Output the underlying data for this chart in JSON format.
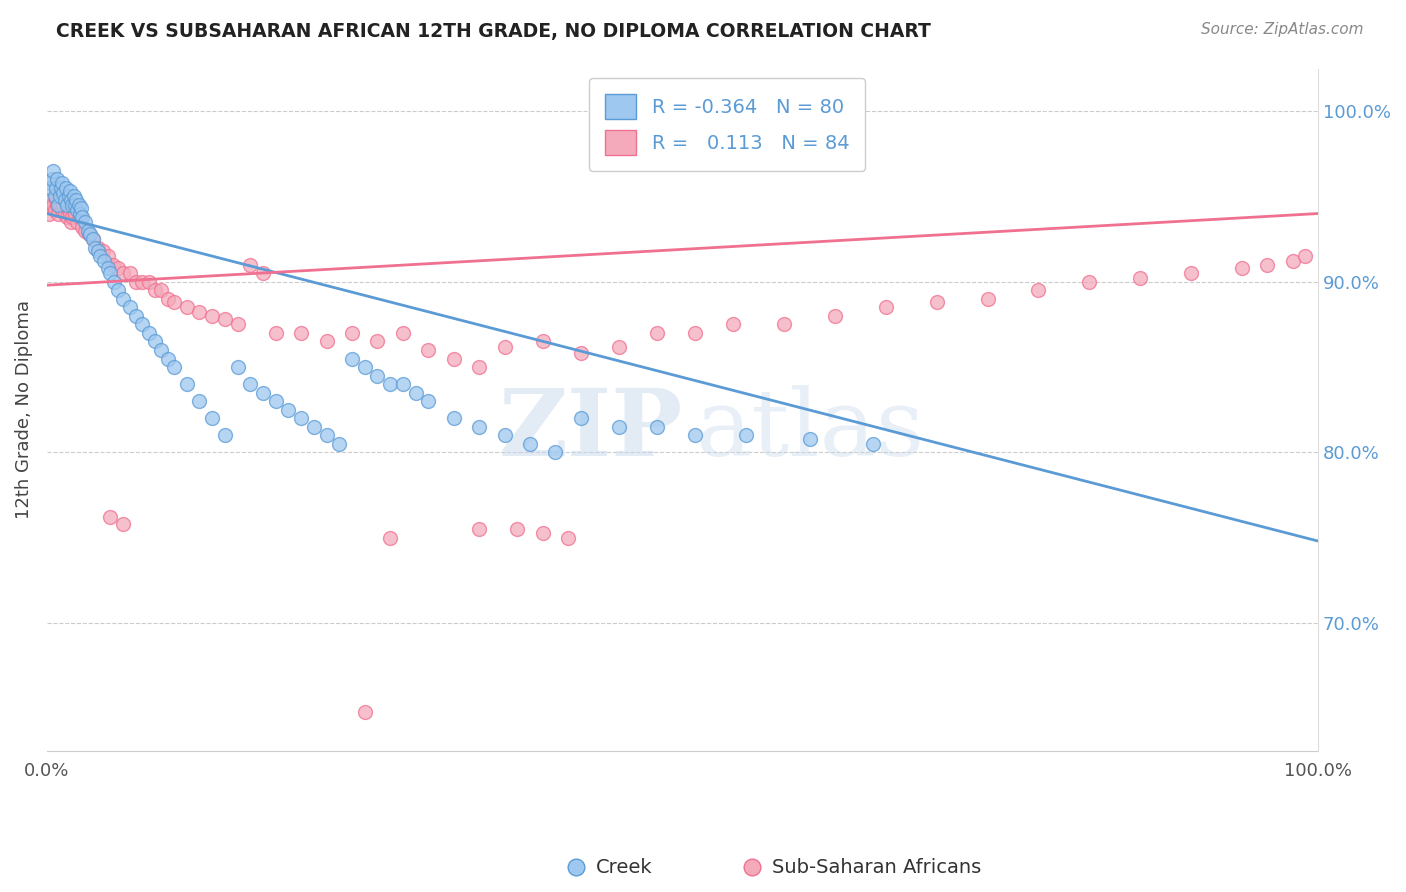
{
  "title": "CREEK VS SUBSAHARAN AFRICAN 12TH GRADE, NO DIPLOMA CORRELATION CHART",
  "source_text": "Source: ZipAtlas.com",
  "ylabel": "12th Grade, No Diploma",
  "legend_label_1": "Creek",
  "legend_label_2": "Sub-Saharan Africans",
  "R1": -0.364,
  "N1": 80,
  "R2": 0.113,
  "N2": 84,
  "color_creek": "#9EC8F0",
  "color_subsaharan": "#F4AABB",
  "color_creek_line": "#5B9BD5",
  "color_subsaharan_line": "#F07090",
  "watermark_zip": "ZIP",
  "watermark_atlas": "atlas",
  "xlim": [
    0.0,
    1.0
  ],
  "ylim": [
    0.625,
    1.025
  ],
  "right_yticks": [
    0.7,
    0.8,
    0.9,
    1.0
  ],
  "right_yticklabels": [
    "70.0%",
    "80.0%",
    "90.0%",
    "100.0%"
  ],
  "xtick_positions": [
    0.0,
    1.0
  ],
  "xticklabels": [
    "0.0%",
    "100.0%"
  ],
  "creek_x": [
    0.002,
    0.003,
    0.004,
    0.005,
    0.006,
    0.007,
    0.008,
    0.009,
    0.01,
    0.011,
    0.012,
    0.013,
    0.014,
    0.015,
    0.016,
    0.017,
    0.018,
    0.019,
    0.02,
    0.021,
    0.022,
    0.023,
    0.024,
    0.025,
    0.026,
    0.027,
    0.028,
    0.03,
    0.032,
    0.034,
    0.036,
    0.038,
    0.04,
    0.042,
    0.045,
    0.048,
    0.05,
    0.053,
    0.056,
    0.06,
    0.065,
    0.07,
    0.075,
    0.08,
    0.085,
    0.09,
    0.095,
    0.1,
    0.11,
    0.12,
    0.13,
    0.14,
    0.15,
    0.16,
    0.17,
    0.18,
    0.19,
    0.2,
    0.21,
    0.22,
    0.23,
    0.24,
    0.25,
    0.26,
    0.27,
    0.28,
    0.29,
    0.3,
    0.32,
    0.34,
    0.36,
    0.38,
    0.4,
    0.42,
    0.45,
    0.48,
    0.51,
    0.55,
    0.6,
    0.65
  ],
  "creek_y": [
    0.958,
    0.955,
    0.96,
    0.965,
    0.95,
    0.955,
    0.96,
    0.945,
    0.95,
    0.955,
    0.958,
    0.952,
    0.948,
    0.955,
    0.945,
    0.95,
    0.953,
    0.948,
    0.945,
    0.95,
    0.945,
    0.948,
    0.942,
    0.945,
    0.94,
    0.943,
    0.938,
    0.935,
    0.93,
    0.928,
    0.925,
    0.92,
    0.918,
    0.915,
    0.912,
    0.908,
    0.905,
    0.9,
    0.895,
    0.89,
    0.885,
    0.88,
    0.875,
    0.87,
    0.865,
    0.86,
    0.855,
    0.85,
    0.84,
    0.83,
    0.82,
    0.81,
    0.85,
    0.84,
    0.835,
    0.83,
    0.825,
    0.82,
    0.815,
    0.81,
    0.805,
    0.855,
    0.85,
    0.845,
    0.84,
    0.84,
    0.835,
    0.83,
    0.82,
    0.815,
    0.81,
    0.805,
    0.8,
    0.82,
    0.815,
    0.815,
    0.81,
    0.81,
    0.808,
    0.805
  ],
  "subsaharan_x": [
    0.002,
    0.003,
    0.004,
    0.005,
    0.006,
    0.007,
    0.008,
    0.009,
    0.01,
    0.011,
    0.012,
    0.013,
    0.014,
    0.015,
    0.016,
    0.017,
    0.018,
    0.019,
    0.02,
    0.022,
    0.024,
    0.026,
    0.028,
    0.03,
    0.033,
    0.036,
    0.04,
    0.044,
    0.048,
    0.052,
    0.056,
    0.06,
    0.065,
    0.07,
    0.075,
    0.08,
    0.085,
    0.09,
    0.095,
    0.1,
    0.11,
    0.12,
    0.13,
    0.14,
    0.15,
    0.16,
    0.17,
    0.18,
    0.2,
    0.22,
    0.24,
    0.26,
    0.28,
    0.3,
    0.32,
    0.34,
    0.36,
    0.39,
    0.42,
    0.45,
    0.48,
    0.51,
    0.54,
    0.58,
    0.62,
    0.66,
    0.7,
    0.74,
    0.78,
    0.82,
    0.86,
    0.9,
    0.94,
    0.96,
    0.98,
    0.99,
    0.05,
    0.06,
    0.34,
    0.37,
    0.39,
    0.41,
    0.25,
    0.27
  ],
  "subsaharan_y": [
    0.94,
    0.945,
    0.948,
    0.945,
    0.942,
    0.948,
    0.945,
    0.94,
    0.945,
    0.948,
    0.942,
    0.945,
    0.94,
    0.945,
    0.938,
    0.942,
    0.94,
    0.935,
    0.938,
    0.94,
    0.935,
    0.938,
    0.932,
    0.93,
    0.928,
    0.925,
    0.92,
    0.918,
    0.915,
    0.91,
    0.908,
    0.905,
    0.905,
    0.9,
    0.9,
    0.9,
    0.895,
    0.895,
    0.89,
    0.888,
    0.885,
    0.882,
    0.88,
    0.878,
    0.875,
    0.91,
    0.905,
    0.87,
    0.87,
    0.865,
    0.87,
    0.865,
    0.87,
    0.86,
    0.855,
    0.85,
    0.862,
    0.865,
    0.858,
    0.862,
    0.87,
    0.87,
    0.875,
    0.875,
    0.88,
    0.885,
    0.888,
    0.89,
    0.895,
    0.9,
    0.902,
    0.905,
    0.908,
    0.91,
    0.912,
    0.915,
    0.762,
    0.758,
    0.755,
    0.755,
    0.753,
    0.75,
    0.648,
    0.75
  ],
  "creek_line_x0": 0.0,
  "creek_line_y0": 0.94,
  "creek_line_x1": 1.0,
  "creek_line_y1": 0.748,
  "sub_line_x0": 0.0,
  "sub_line_y0": 0.898,
  "sub_line_x1": 1.0,
  "sub_line_y1": 0.94
}
